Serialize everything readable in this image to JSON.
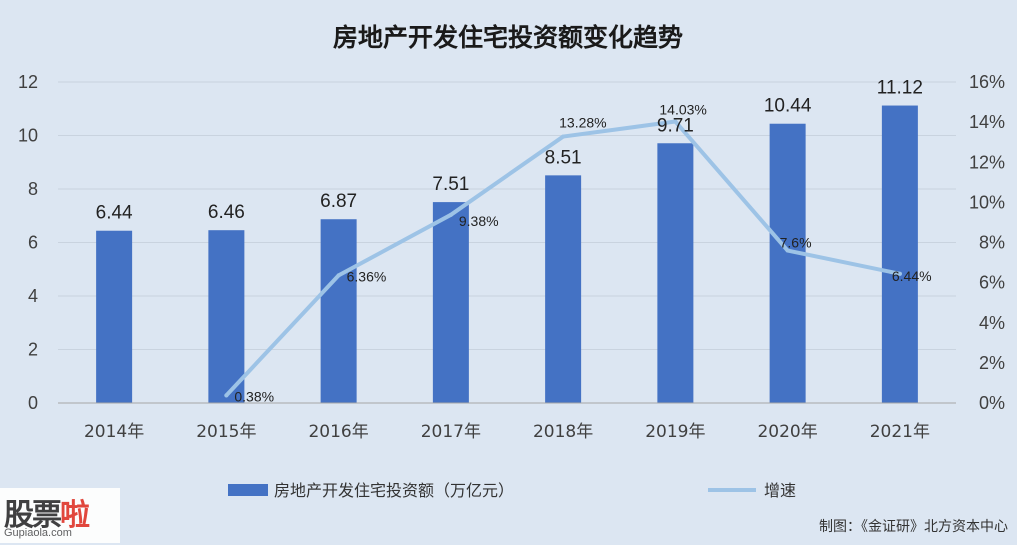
{
  "chart_data": {
    "type": "bar",
    "title": "房地产开发住宅投资额变化趋势",
    "categories": [
      "2014年",
      "2015年",
      "2016年",
      "2017年",
      "2018年",
      "2019年",
      "2020年",
      "2021年"
    ],
    "series": [
      {
        "name": "房地产开发住宅投资额（万亿元）",
        "type": "bar",
        "axis": "left",
        "values": [
          6.44,
          6.46,
          6.87,
          7.51,
          8.51,
          9.71,
          10.44,
          11.12
        ],
        "labels": [
          "6.44",
          "6.46",
          "6.87",
          "7.51",
          "8.51",
          "9.71",
          "10.44",
          "11.12"
        ],
        "color": "#4472c4"
      },
      {
        "name": "增速",
        "type": "line",
        "axis": "right",
        "values": [
          null,
          0.38,
          6.36,
          9.38,
          13.28,
          14.03,
          7.6,
          6.44
        ],
        "labels": [
          "",
          "0.38%",
          "6.36%",
          "9.38%",
          "13.28%",
          "14.03%",
          "7.6%",
          "6.44%"
        ],
        "color": "#9dc3e6"
      }
    ],
    "ylim_left": [
      0,
      12
    ],
    "yticks_left": [
      "0",
      "2",
      "4",
      "6",
      "8",
      "10",
      "12"
    ],
    "ylim_right": [
      0,
      16
    ],
    "yticks_right": [
      "0%",
      "2%",
      "4%",
      "6%",
      "8%",
      "10%",
      "12%",
      "14%",
      "16%"
    ],
    "grid": true,
    "legend_position": "bottom"
  },
  "credit": "制图：《金证研》北方资本中心",
  "watermark": {
    "name_black": "股票",
    "name_red": "啦",
    "url": "Gupiaola.com"
  },
  "colors": {
    "background": "#dce6f2",
    "bar": "#4472c4",
    "line": "#9dc3e6",
    "grid": "#c9d3df"
  }
}
